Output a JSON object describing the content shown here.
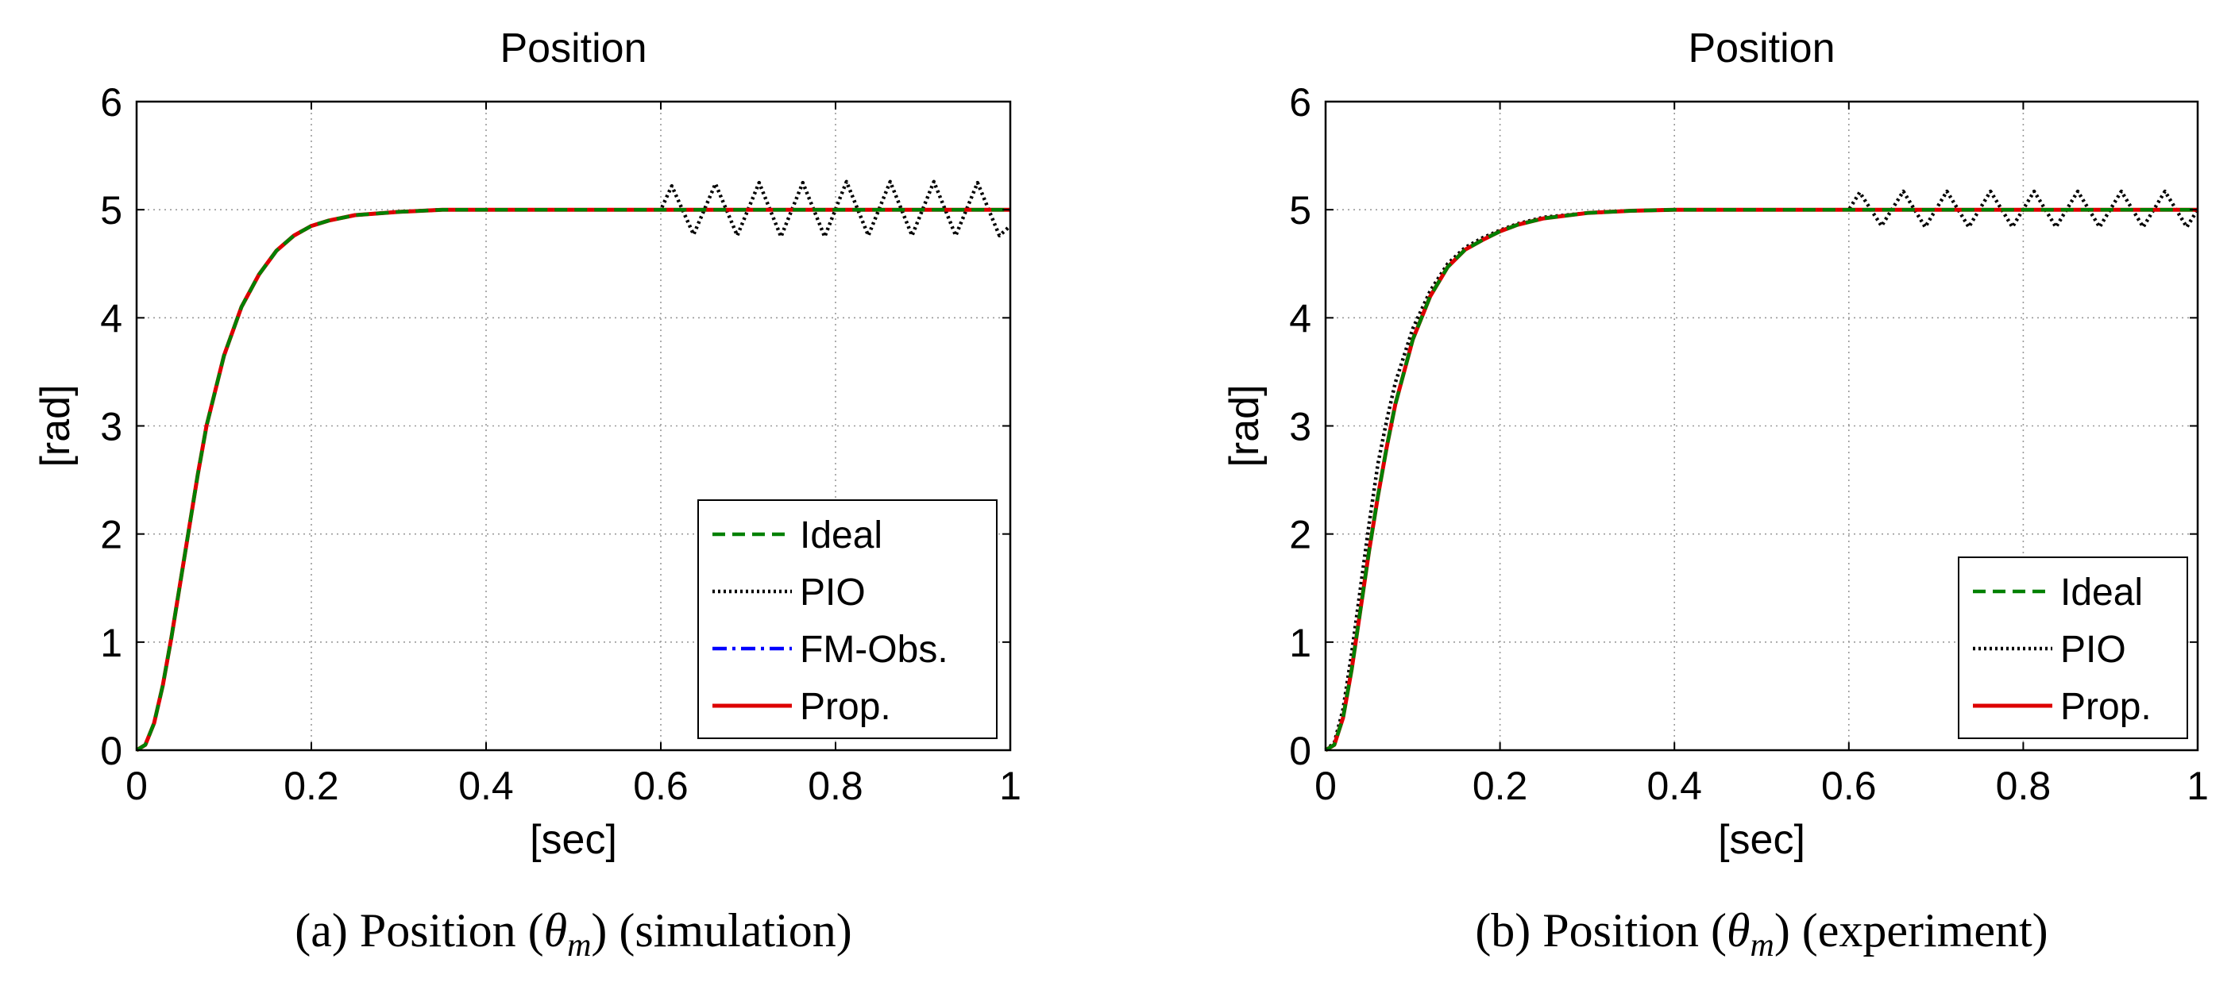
{
  "chart_data": [
    {
      "type": "line",
      "title": "Position",
      "xlabel": "[sec]",
      "ylabel": "[rad]",
      "xlim": [
        0,
        1
      ],
      "ylim": [
        0,
        6
      ],
      "xticks": [
        0,
        0.2,
        0.4,
        0.6,
        0.8,
        1
      ],
      "xtick_labels": [
        "0",
        "0.2",
        "0.4",
        "0.6",
        "0.8",
        "1"
      ],
      "yticks": [
        0,
        1,
        2,
        3,
        4,
        5,
        6
      ],
      "ytick_labels": [
        "0",
        "1",
        "2",
        "3",
        "4",
        "5",
        "6"
      ],
      "grid": true,
      "legend_position": "bottom-right",
      "caption": {
        "label": "(a)",
        "pre": "Position (",
        "theta": "θ",
        "sub": "m",
        "post": ") (simulation)"
      },
      "series": [
        {
          "name": "Ideal",
          "color": "#008000",
          "style": "dashed",
          "x": [
            0,
            0.01,
            0.02,
            0.03,
            0.04,
            0.05,
            0.06,
            0.07,
            0.08,
            0.1,
            0.12,
            0.14,
            0.16,
            0.18,
            0.2,
            0.22,
            0.25,
            0.3,
            0.35,
            0.4,
            0.5,
            0.6,
            0.7,
            0.8,
            0.9,
            1.0
          ],
          "y": [
            0,
            0.05,
            0.25,
            0.6,
            1.05,
            1.55,
            2.05,
            2.55,
            3.0,
            3.65,
            4.1,
            4.4,
            4.62,
            4.76,
            4.85,
            4.9,
            4.95,
            4.98,
            5.0,
            5.0,
            5.0,
            5.0,
            5.0,
            5.0,
            5.0,
            5.0
          ]
        },
        {
          "name": "PIO",
          "color": "#000000",
          "style": "dotted",
          "x": [
            0,
            0.01,
            0.02,
            0.03,
            0.04,
            0.05,
            0.06,
            0.07,
            0.08,
            0.1,
            0.12,
            0.14,
            0.16,
            0.18,
            0.2,
            0.22,
            0.25,
            0.3,
            0.35,
            0.4,
            0.5,
            0.6,
            0.6125,
            0.6375,
            0.6625,
            0.6875,
            0.7125,
            0.7375,
            0.7625,
            0.7875,
            0.8125,
            0.8375,
            0.8625,
            0.8875,
            0.9125,
            0.9375,
            0.9625,
            0.9875,
            1.0
          ],
          "y": [
            0,
            0.05,
            0.25,
            0.6,
            1.05,
            1.55,
            2.05,
            2.55,
            3.0,
            3.65,
            4.1,
            4.4,
            4.62,
            4.76,
            4.85,
            4.9,
            4.95,
            4.98,
            5.0,
            5.0,
            5.0,
            5.0,
            5.22,
            4.77,
            5.24,
            4.76,
            5.25,
            4.75,
            5.25,
            4.75,
            5.26,
            4.76,
            5.26,
            4.76,
            5.26,
            4.76,
            5.25,
            4.76,
            4.85
          ]
        },
        {
          "name": "FM-Obs.",
          "color": "#0000ff",
          "style": "dashdot",
          "x": [
            0,
            0.01,
            0.02,
            0.03,
            0.04,
            0.05,
            0.06,
            0.07,
            0.08,
            0.1,
            0.12,
            0.14,
            0.16,
            0.18,
            0.2,
            0.22,
            0.25,
            0.3,
            0.35,
            0.4,
            0.5,
            0.6,
            0.7,
            0.8,
            0.9,
            1.0
          ],
          "y": [
            0,
            0.05,
            0.25,
            0.6,
            1.05,
            1.55,
            2.05,
            2.55,
            3.0,
            3.65,
            4.1,
            4.4,
            4.62,
            4.76,
            4.85,
            4.9,
            4.95,
            4.98,
            5.0,
            5.0,
            5.0,
            5.0,
            5.0,
            5.0,
            5.0,
            5.0
          ]
        },
        {
          "name": "Prop.",
          "color": "#dd0000",
          "style": "solid",
          "x": [
            0,
            0.01,
            0.02,
            0.03,
            0.04,
            0.05,
            0.06,
            0.07,
            0.08,
            0.1,
            0.12,
            0.14,
            0.16,
            0.18,
            0.2,
            0.22,
            0.25,
            0.3,
            0.35,
            0.4,
            0.5,
            0.6,
            0.7,
            0.8,
            0.9,
            1.0
          ],
          "y": [
            0,
            0.05,
            0.25,
            0.6,
            1.05,
            1.55,
            2.05,
            2.55,
            3.0,
            3.65,
            4.1,
            4.4,
            4.62,
            4.76,
            4.85,
            4.9,
            4.95,
            4.98,
            5.0,
            5.0,
            5.0,
            5.0,
            5.0,
            5.0,
            5.0,
            5.0
          ]
        }
      ],
      "draw_order": [
        "PIO",
        "FM-Obs.",
        "Prop.",
        "Ideal"
      ]
    },
    {
      "type": "line",
      "title": "Position",
      "xlabel": "[sec]",
      "ylabel": "[rad]",
      "xlim": [
        0,
        1
      ],
      "ylim": [
        0,
        6
      ],
      "xticks": [
        0,
        0.2,
        0.4,
        0.6,
        0.8,
        1
      ],
      "xtick_labels": [
        "0",
        "0.2",
        "0.4",
        "0.6",
        "0.8",
        "1"
      ],
      "yticks": [
        0,
        1,
        2,
        3,
        4,
        5,
        6
      ],
      "ytick_labels": [
        "0",
        "1",
        "2",
        "3",
        "4",
        "5",
        "6"
      ],
      "grid": true,
      "legend_position": "bottom-right",
      "caption": {
        "label": "(b)",
        "pre": "Position (",
        "theta": "θ",
        "sub": "m",
        "post": ") (experiment)"
      },
      "series": [
        {
          "name": "Ideal",
          "color": "#008000",
          "style": "dashed",
          "x": [
            0,
            0.01,
            0.02,
            0.03,
            0.04,
            0.05,
            0.06,
            0.07,
            0.08,
            0.1,
            0.12,
            0.14,
            0.16,
            0.18,
            0.2,
            0.22,
            0.25,
            0.3,
            0.35,
            0.4,
            0.5,
            0.6,
            0.7,
            0.8,
            0.9,
            1.0
          ],
          "y": [
            0,
            0.05,
            0.3,
            0.75,
            1.3,
            1.85,
            2.35,
            2.8,
            3.2,
            3.8,
            4.2,
            4.47,
            4.63,
            4.72,
            4.8,
            4.86,
            4.92,
            4.97,
            4.99,
            5.0,
            5.0,
            5.0,
            5.0,
            5.0,
            5.0,
            5.0
          ]
        },
        {
          "name": "PIO",
          "color": "#000000",
          "style": "dotted",
          "x": [
            0,
            0.01,
            0.02,
            0.03,
            0.04,
            0.05,
            0.06,
            0.07,
            0.08,
            0.1,
            0.12,
            0.14,
            0.16,
            0.18,
            0.2,
            0.22,
            0.25,
            0.3,
            0.35,
            0.4,
            0.5,
            0.6,
            0.6125,
            0.6375,
            0.6625,
            0.6875,
            0.7125,
            0.7375,
            0.7625,
            0.7875,
            0.8125,
            0.8375,
            0.8625,
            0.8875,
            0.9125,
            0.9375,
            0.9625,
            0.9875,
            1.0
          ],
          "y": [
            0,
            0.07,
            0.38,
            0.9,
            1.5,
            2.1,
            2.65,
            3.05,
            3.4,
            3.9,
            4.25,
            4.5,
            4.65,
            4.74,
            4.81,
            4.87,
            4.93,
            4.97,
            4.99,
            5.0,
            5.0,
            5.0,
            5.16,
            4.85,
            5.17,
            4.84,
            5.17,
            4.84,
            5.17,
            4.84,
            5.17,
            4.84,
            5.17,
            4.84,
            5.17,
            4.84,
            5.17,
            4.84,
            5.0
          ]
        },
        {
          "name": "Prop.",
          "color": "#dd0000",
          "style": "solid",
          "x": [
            0,
            0.01,
            0.02,
            0.03,
            0.04,
            0.05,
            0.06,
            0.07,
            0.08,
            0.1,
            0.12,
            0.14,
            0.16,
            0.18,
            0.2,
            0.22,
            0.25,
            0.3,
            0.35,
            0.4,
            0.5,
            0.6,
            0.7,
            0.8,
            0.9,
            1.0
          ],
          "y": [
            0,
            0.05,
            0.3,
            0.75,
            1.3,
            1.85,
            2.35,
            2.8,
            3.2,
            3.8,
            4.2,
            4.47,
            4.63,
            4.72,
            4.8,
            4.86,
            4.92,
            4.97,
            4.99,
            5.0,
            5.0,
            5.0,
            5.0,
            5.0,
            5.0,
            5.0
          ]
        }
      ],
      "draw_order": [
        "PIO",
        "Prop.",
        "Ideal"
      ]
    }
  ]
}
